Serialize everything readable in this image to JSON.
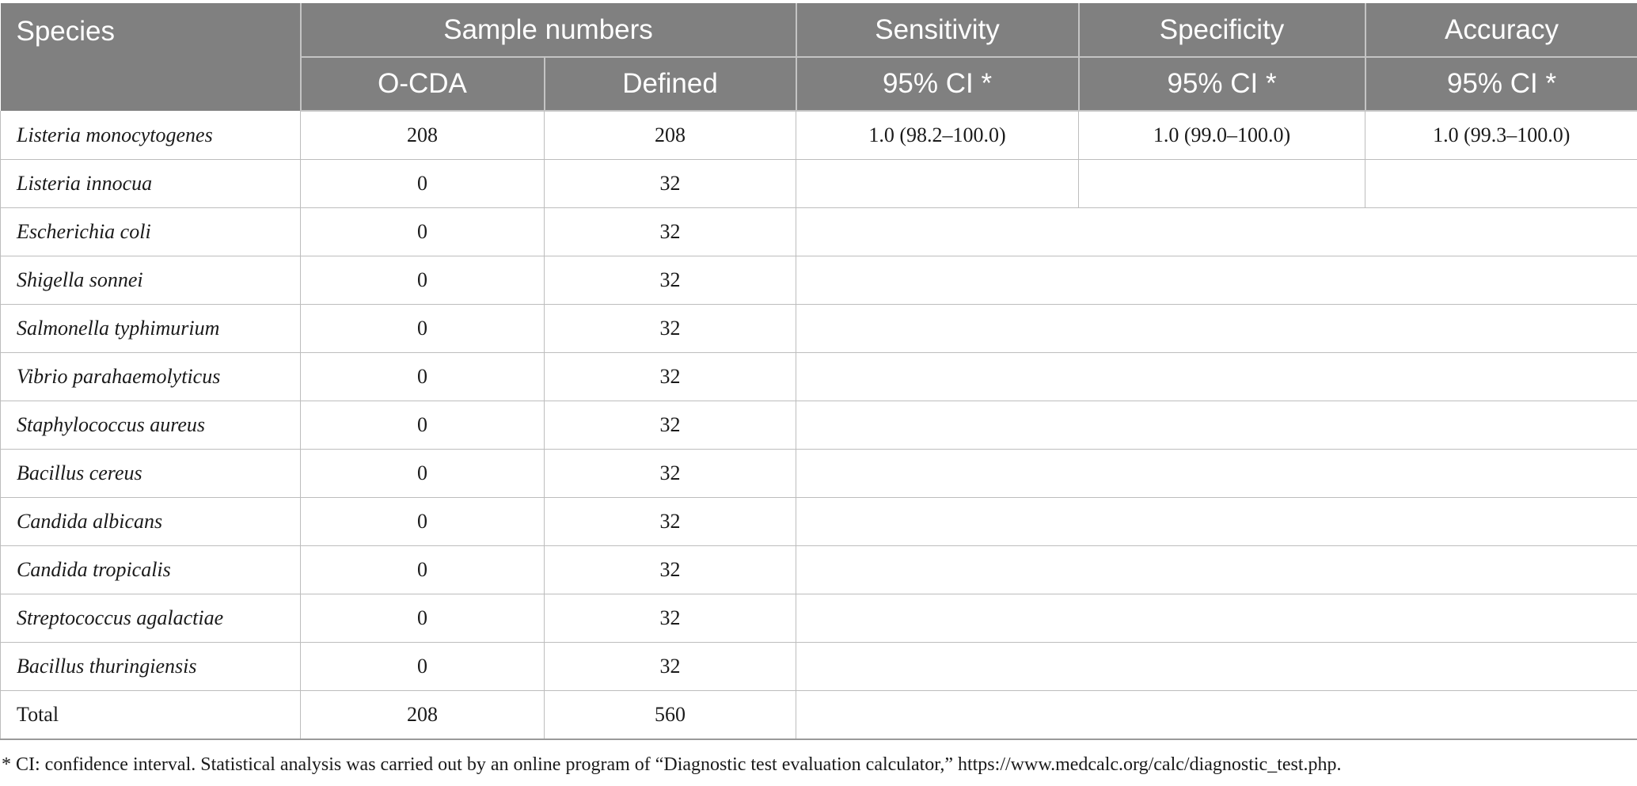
{
  "header": {
    "species": "Species",
    "sample_numbers": "Sample numbers",
    "sensitivity": "Sensitivity",
    "specificity": "Specificity",
    "accuracy": "Accuracy",
    "ocda": "O-CDA",
    "defined": "Defined",
    "sens_ci": "95% CI *",
    "spec_ci": "95% CI *",
    "acc_ci": "95% CI *"
  },
  "rows": [
    {
      "species": "Listeria monocytogenes",
      "ocda": "208",
      "defined": "208",
      "sensitivity": "1.0 (98.2–100.0)",
      "specificity": "1.0 (99.0–100.0)",
      "accuracy": "1.0 (99.3–100.0)"
    },
    {
      "species": "Listeria innocua",
      "ocda": "0",
      "defined": "32"
    },
    {
      "species": "Escherichia coli",
      "ocda": "0",
      "defined": "32"
    },
    {
      "species": "Shigella sonnei",
      "ocda": "0",
      "defined": "32"
    },
    {
      "species": "Salmonella typhimurium",
      "ocda": "0",
      "defined": "32"
    },
    {
      "species": "Vibrio parahaemolyticus",
      "ocda": "0",
      "defined": "32"
    },
    {
      "species": "Staphylococcus aureus",
      "ocda": "0",
      "defined": "32"
    },
    {
      "species": "Bacillus cereus",
      "ocda": "0",
      "defined": "32"
    },
    {
      "species": "Candida albicans",
      "ocda": "0",
      "defined": "32"
    },
    {
      "species": "Candida tropicalis",
      "ocda": "0",
      "defined": "32"
    },
    {
      "species": "Streptococcus agalactiae",
      "ocda": "0",
      "defined": "32"
    },
    {
      "species": "Bacillus thuringiensis",
      "ocda": "0",
      "defined": "32"
    },
    {
      "species": "Total",
      "ocda": "208",
      "defined": "560"
    }
  ],
  "footnote": "* CI: confidence interval. Statistical analysis was carried out by an online program of “Diagnostic test evaluation calculator,” https://www.medcalc.org/calc/diagnostic_test.php."
}
